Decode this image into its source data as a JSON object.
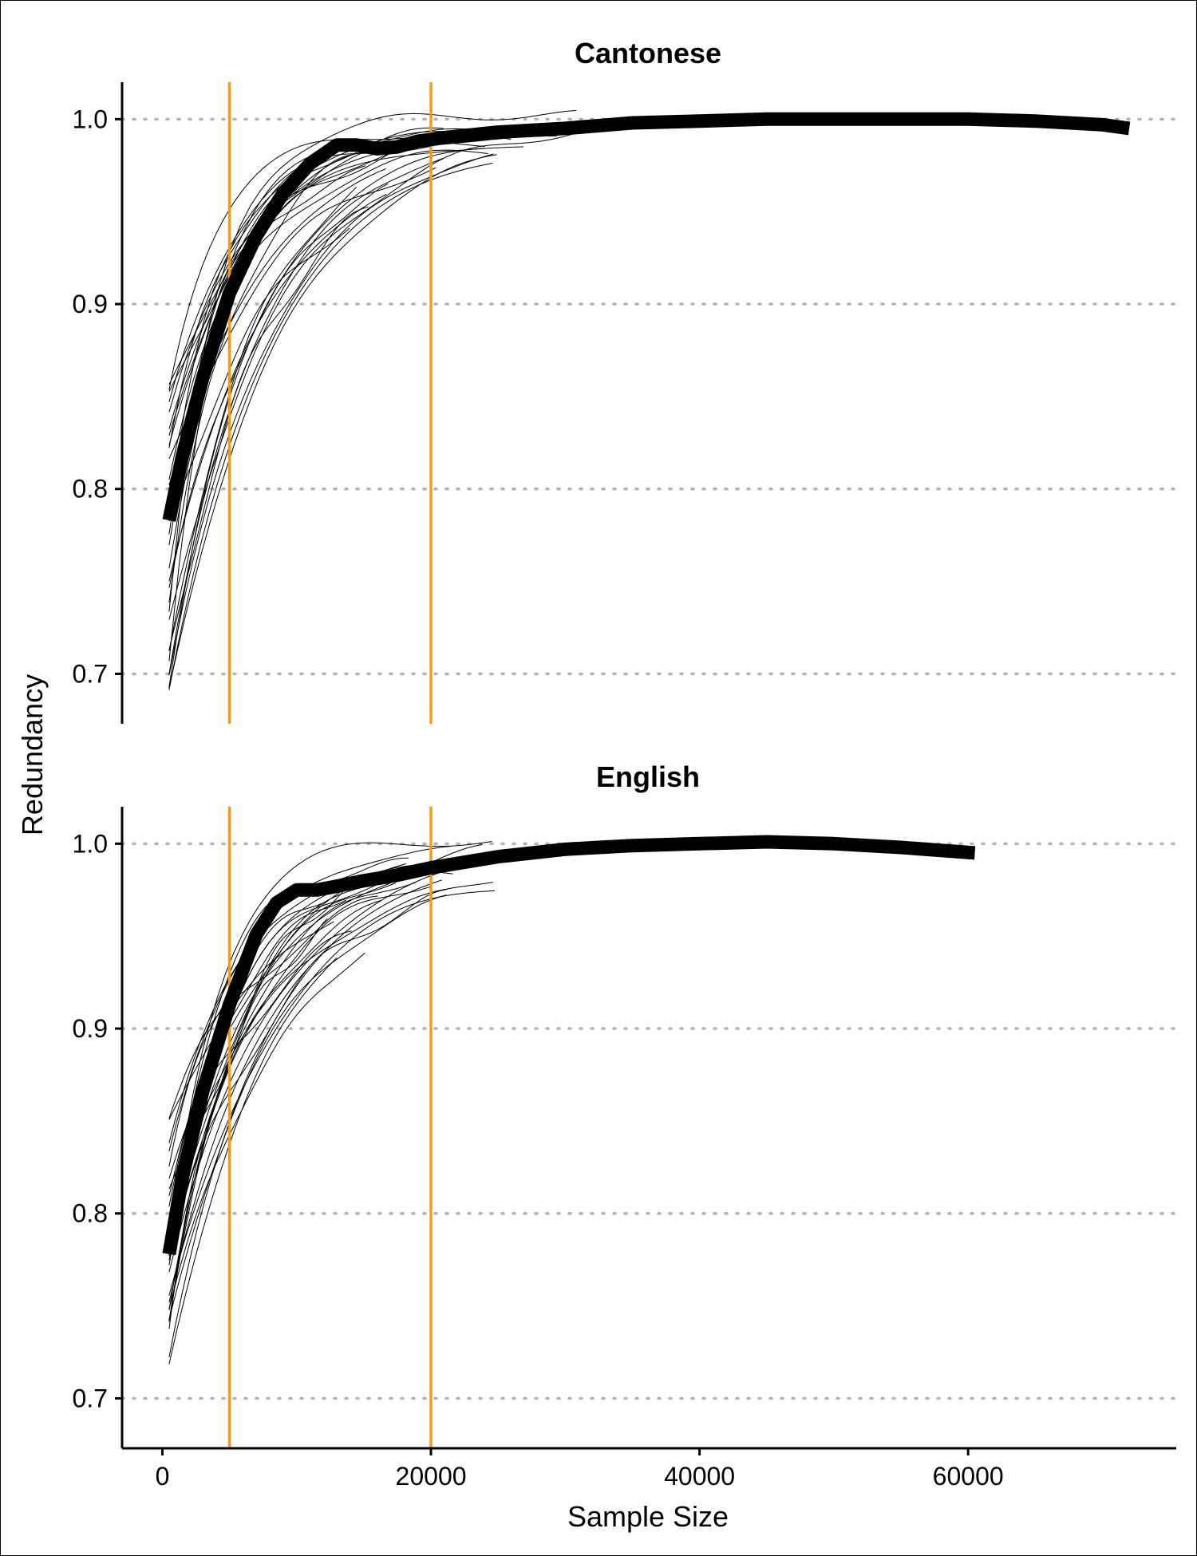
{
  "chart_data": {
    "type": "line",
    "xlabel": "Sample Size",
    "ylabel": "Redundancy",
    "xlim": [
      -3000,
      75500
    ],
    "ylim": [
      0.673,
      1.02
    ],
    "x_ticks": [
      0,
      20000,
      40000,
      60000
    ],
    "y_ticks": [
      0.7,
      0.8,
      0.9,
      1.0
    ],
    "grid": "horizontal dotted",
    "reference_lines_x": [
      5000,
      20000
    ],
    "colors": {
      "reference_line": "#f39c19",
      "curves": "#000000",
      "grid": "#b3b3b3"
    },
    "panels": [
      {
        "title": "Cantonese",
        "mean_series": {
          "x": [
            500,
            1500,
            3000,
            5000,
            7000,
            9000,
            11000,
            13000,
            14500,
            16000,
            17500,
            19000,
            21000,
            25000,
            30000,
            35000,
            40000,
            45000,
            50000,
            55000,
            60000,
            65000,
            70000,
            72000
          ],
          "values": [
            0.783,
            0.818,
            0.86,
            0.906,
            0.937,
            0.96,
            0.976,
            0.986,
            0.986,
            0.984,
            0.985,
            0.988,
            0.99,
            0.993,
            0.995,
            0.998,
            0.999,
            1.0,
            1.0,
            1.0,
            1.0,
            0.999,
            0.997,
            0.995
          ]
        },
        "curve_count": 30,
        "curve_x_range": [
          500,
          32000
        ],
        "curve_start_range": [
          0.688,
          0.862
        ],
        "curve_end_range": [
          0.985,
          1.003
        ]
      },
      {
        "title": "English",
        "mean_series": {
          "x": [
            500,
            1500,
            3000,
            5000,
            7000,
            8500,
            10000,
            11500,
            13000,
            15000,
            17500,
            20000,
            25000,
            30000,
            35000,
            40000,
            45000,
            50000,
            55000,
            60500
          ],
          "values": [
            0.778,
            0.82,
            0.866,
            0.913,
            0.951,
            0.968,
            0.975,
            0.975,
            0.977,
            0.98,
            0.983,
            0.987,
            0.993,
            0.997,
            0.999,
            1.0,
            1.001,
            1.0,
            0.998,
            0.995
          ]
        },
        "curve_count": 30,
        "curve_x_range": [
          500,
          25000
        ],
        "curve_start_range": [
          0.693,
          0.855
        ],
        "curve_end_range": [
          0.985,
          1.003
        ]
      }
    ]
  }
}
